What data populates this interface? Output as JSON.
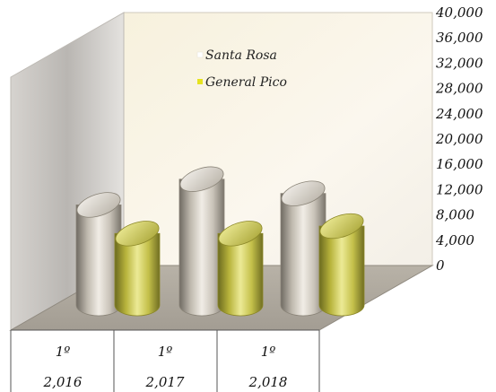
{
  "chart_data": {
    "type": "bar",
    "style": "3d-cylinder",
    "categories": [
      {
        "line1": "1º",
        "line2": "2,016"
      },
      {
        "line1": "1º",
        "line2": "2,017"
      },
      {
        "line1": "1º",
        "line2": "2,018"
      }
    ],
    "series": [
      {
        "name": "Santa Rosa",
        "color": "#c8c2b8",
        "values": [
          17500,
          22000,
          19500
        ]
      },
      {
        "name": "General  Pico",
        "color": "#d2cf5c",
        "values": [
          12500,
          12500,
          13800
        ]
      }
    ],
    "ylim": [
      0,
      40000
    ],
    "y_ticks": [
      "0",
      "4,000",
      "8,000",
      "12,000",
      "16,000",
      "20,000",
      "24,000",
      "28,000",
      "32,000",
      "36,000",
      "40,000"
    ],
    "y_tick_values": [
      0,
      4000,
      8000,
      12000,
      16000,
      20000,
      24000,
      28000,
      32000,
      36000,
      40000
    ],
    "legend_position": "top-center",
    "grid": false,
    "table_grid": true
  }
}
